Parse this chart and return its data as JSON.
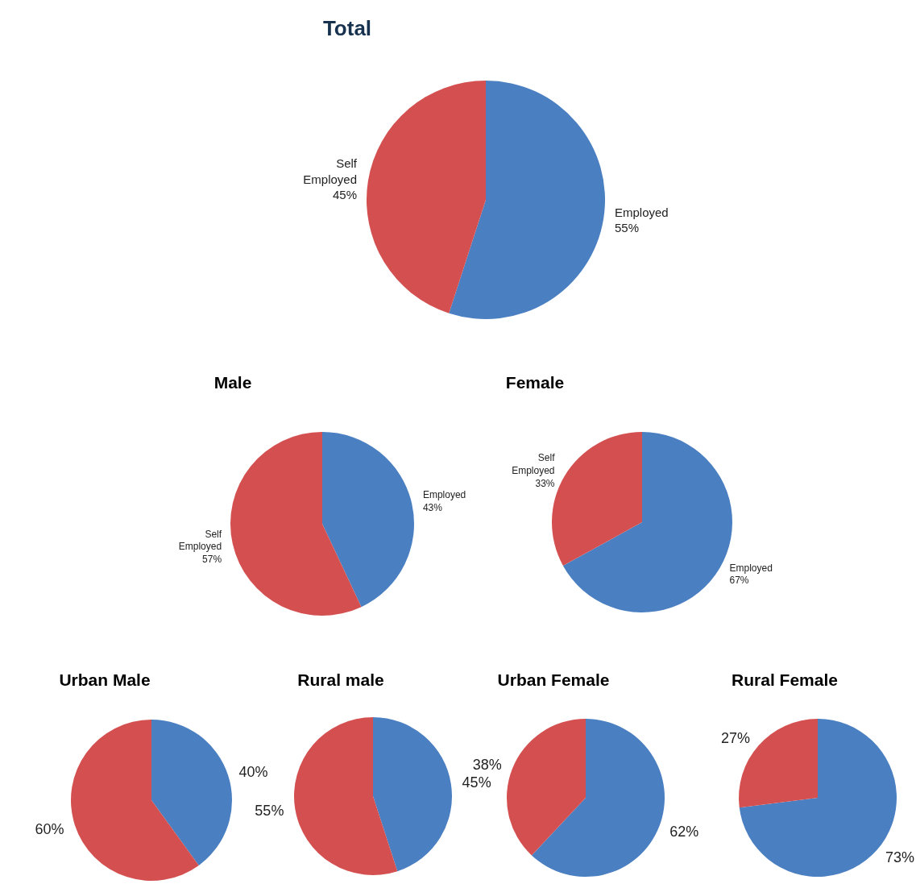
{
  "chart_data": [
    {
      "type": "pie",
      "title": "Total",
      "categories": [
        "Employed",
        "Self Employed"
      ],
      "values": [
        55,
        45
      ],
      "value_labels": [
        "55%",
        "45%"
      ],
      "colors": [
        "#4a7fc1",
        "#d45050"
      ]
    },
    {
      "type": "pie",
      "title": "Male",
      "categories": [
        "Employed",
        "Self Employed"
      ],
      "values": [
        43,
        57
      ],
      "value_labels": [
        "43%",
        "57%"
      ],
      "colors": [
        "#4a7fc1",
        "#d45050"
      ]
    },
    {
      "type": "pie",
      "title": "Female",
      "categories": [
        "Employed",
        "Self Employed"
      ],
      "values": [
        67,
        33
      ],
      "value_labels": [
        "67%",
        "33%"
      ],
      "colors": [
        "#4a7fc1",
        "#d45050"
      ]
    },
    {
      "type": "pie",
      "title": "Urban Male",
      "categories": [
        null,
        null
      ],
      "values": [
        40,
        60
      ],
      "value_labels": [
        "40%",
        "60%"
      ],
      "colors": [
        "#4a7fc1",
        "#d45050"
      ]
    },
    {
      "type": "pie",
      "title": "Rural male",
      "categories": [
        null,
        null
      ],
      "values": [
        45,
        55
      ],
      "value_labels": [
        "45%",
        "55%"
      ],
      "colors": [
        "#4a7fc1",
        "#d45050"
      ]
    },
    {
      "type": "pie",
      "title": "Urban Female",
      "categories": [
        null,
        null
      ],
      "values": [
        62,
        38
      ],
      "value_labels": [
        "62%",
        "38%"
      ],
      "colors": [
        "#4a7fc1",
        "#d45050"
      ]
    },
    {
      "type": "pie",
      "title": "Rural Female",
      "categories": [
        null,
        null
      ],
      "values": [
        73,
        27
      ],
      "value_labels": [
        "73%",
        "27%"
      ],
      "colors": [
        "#4a7fc1",
        "#d45050"
      ]
    }
  ]
}
